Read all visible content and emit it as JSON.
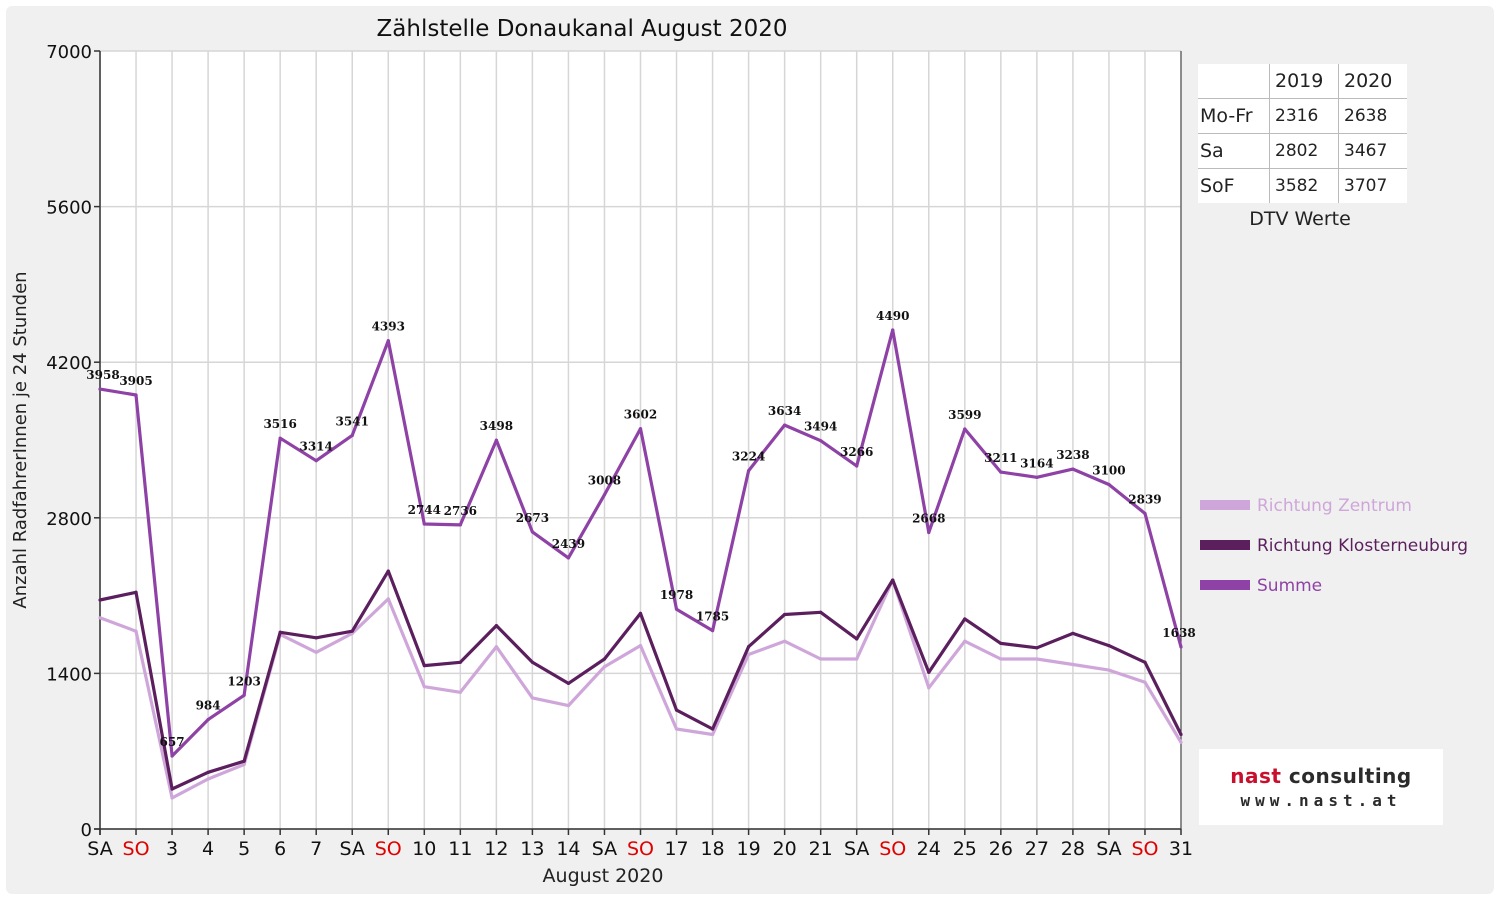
{
  "chart_data": {
    "type": "line",
    "title": "Zählstelle Donaukanal August 2020",
    "xlabel": "August 2020",
    "ylabel": "Anzahl RadfahrerInnen je 24 Stunden",
    "ylim": [
      0,
      7000
    ],
    "yticks": [
      0,
      1400,
      2800,
      4200,
      5600,
      7000
    ],
    "grid": true,
    "legend_position": "right",
    "categories": [
      "SA",
      "SO",
      "3",
      "4",
      "5",
      "6",
      "7",
      "SA",
      "SO",
      "10",
      "11",
      "12",
      "13",
      "14",
      "SA",
      "SO",
      "17",
      "18",
      "19",
      "20",
      "21",
      "SA",
      "SO",
      "24",
      "25",
      "26",
      "27",
      "28",
      "SA",
      "SO",
      "31"
    ],
    "sunday_indices": [
      1,
      8,
      15,
      22,
      29
    ],
    "series": [
      {
        "name": "Richtung Zentrum",
        "color": "#cfa6da",
        "values": [
          1900,
          1780,
          280,
          450,
          580,
          1750,
          1590,
          1760,
          2070,
          1280,
          1230,
          1640,
          1180,
          1110,
          1460,
          1650,
          900,
          850,
          1570,
          1690,
          1530,
          1530,
          2240,
          1270,
          1690,
          1530,
          1530,
          1480,
          1430,
          1320,
          780
        ]
      },
      {
        "name": "Richtung Klosterneuburg",
        "color": "#5c1f5e",
        "values": [
          2060,
          2130,
          360,
          510,
          610,
          1770,
          1720,
          1780,
          2320,
          1470,
          1500,
          1830,
          1500,
          1310,
          1530,
          1940,
          1070,
          900,
          1640,
          1930,
          1950,
          1710,
          2240,
          1410,
          1890,
          1670,
          1630,
          1760,
          1650,
          1500,
          850
        ]
      },
      {
        "name": "Summe",
        "color": "#8f42a6",
        "values": [
          3958,
          3905,
          657,
          984,
          1203,
          3516,
          3314,
          3541,
          4393,
          2744,
          2736,
          3498,
          2673,
          2439,
          3008,
          3602,
          1978,
          1785,
          3224,
          3634,
          3494,
          3266,
          4490,
          2668,
          3599,
          3211,
          3164,
          3238,
          3100,
          2839,
          1638
        ],
        "data_labels": true
      }
    ]
  },
  "dtv": {
    "years": [
      "2019",
      "2020"
    ],
    "rows": [
      {
        "label": "Mo-Fr",
        "v2019": "2316",
        "v2020": "2638"
      },
      {
        "label": "Sa",
        "v2019": "2802",
        "v2020": "3467"
      },
      {
        "label": "SoF",
        "v2019": "3582",
        "v2020": "3707"
      }
    ],
    "caption": "DTV Werte"
  },
  "logo": {
    "name_part1": "nast",
    "name_part2": " consulting",
    "url": "www.nast.at",
    "brand_color": "#c8102e"
  },
  "colors": {
    "sunday_label": "#e00000",
    "grid": "#d6d6d6",
    "axis": "#333333"
  }
}
